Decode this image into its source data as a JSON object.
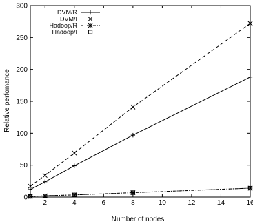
{
  "chart_data": {
    "type": "line",
    "xlabel": "Number of nodes",
    "ylabel": "Relative perfomance",
    "xlim": [
      1,
      16
    ],
    "ylim": [
      0,
      300
    ],
    "xticks": [
      "2",
      "4",
      "6",
      "8",
      "10",
      "12",
      "14",
      "16"
    ],
    "yticks": [
      "0",
      "50",
      "100",
      "150",
      "200",
      "250",
      "300"
    ],
    "grid": false,
    "legend_position": "top-left",
    "x": [
      1,
      2,
      4,
      8,
      16
    ],
    "series": [
      {
        "name": "DVM/R",
        "values": [
          12,
          24,
          49,
          97,
          188
        ],
        "marker": "plus",
        "dash": "solid"
      },
      {
        "name": "DVM/I",
        "values": [
          17,
          34,
          69,
          141,
          272
        ],
        "marker": "cross",
        "dash": "dashed"
      },
      {
        "name": "Hadoop/R",
        "values": [
          1,
          2,
          3.5,
          7,
          14
        ],
        "marker": "star",
        "dash": "dashdot"
      },
      {
        "name": "Hadoop/I",
        "values": [
          1,
          2,
          3.5,
          7,
          14
        ],
        "marker": "square",
        "dash": "dotted"
      }
    ]
  }
}
